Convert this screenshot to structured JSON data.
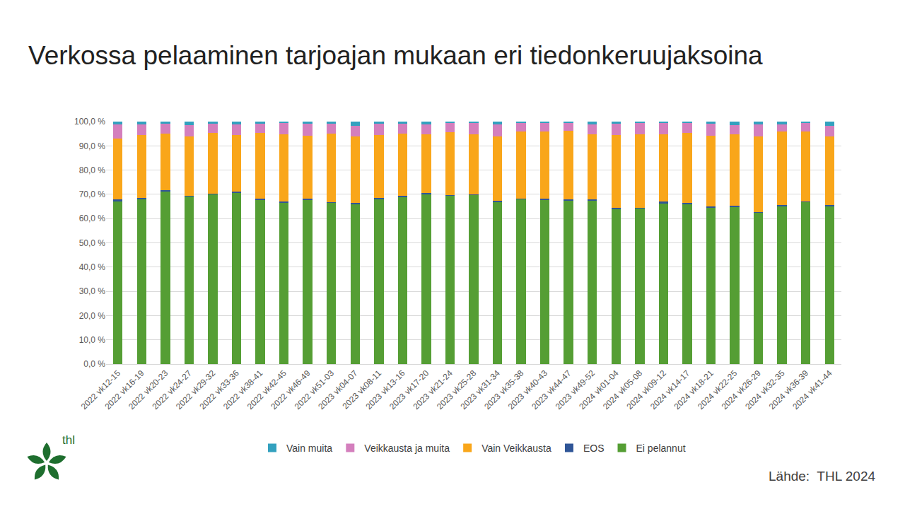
{
  "chart_data": {
    "type": "bar",
    "title": "Verkossa pelaaminen tarjoajan mukaan eri tiedonkeruujaksoina",
    "source": "Lähde:  THL 2024",
    "logo_text": "thl",
    "stacked": true,
    "grid": true,
    "legend": "bottom",
    "categories": [
      "2022 vk12-15",
      "2022 vk16-19",
      "2022 vk20-23",
      "2022 vk24-27",
      "2022 vk29-32",
      "2022 vk33-36",
      "2022 vk38-41",
      "2022 vk42-45",
      "2022 vk46-49",
      "2022 vk51-03",
      "2023 vk04-07",
      "2023 vk08-11",
      "2023 vk13-16",
      "2023 vk17-20",
      "2023 vk21-24",
      "2023 vk25-28",
      "2023 vk31-34",
      "2023 vk35-38",
      "2023 vk40-43",
      "2023 vk44-47",
      "2023 vk49-52",
      "2024 vk01-04",
      "2024 vk05-08",
      "2024 vk09-12",
      "2024 vk14-17",
      "2024 vk18-21",
      "2024 vk22-25",
      "2024 vk26-29",
      "2024 vk32-35",
      "2024 vk36-39",
      "2024 vk41-44"
    ],
    "series": [
      {
        "name": "Ei pelannut",
        "color": "#559e34",
        "values": [
          67,
          68,
          71.3,
          69.2,
          70,
          70.5,
          67.8,
          66.5,
          67.8,
          66.6,
          66,
          68.2,
          69,
          70.2,
          69.5,
          69.8,
          67,
          68,
          67.8,
          67.6,
          67.6,
          64,
          64.3,
          66.3,
          66,
          64.7,
          64.9,
          62.5,
          65.2,
          66.8,
          65.2
        ]
      },
      {
        "name": "EOS",
        "color": "#2f5597",
        "values": [
          0.8,
          0.6,
          0.3,
          0.3,
          0.3,
          0.6,
          0.3,
          0.7,
          0.3,
          0.2,
          0.5,
          0.3,
          0.5,
          0.4,
          0.2,
          0.2,
          0.4,
          0.3,
          0.4,
          0.4,
          0.4,
          0.3,
          0.2,
          0.7,
          0.6,
          0.2,
          0.4,
          0.3,
          0.4,
          0.4,
          0.4
        ]
      },
      {
        "name": "Vain Veikkausta",
        "color": "#f9a61a",
        "values": [
          25.2,
          25.9,
          23.4,
          24.5,
          25,
          23.4,
          27.2,
          27.6,
          26.2,
          28.2,
          27.5,
          26,
          25.5,
          24.2,
          26,
          24.8,
          26.6,
          27.7,
          27.6,
          28.2,
          26.8,
          30.2,
          30.3,
          27.8,
          28.6,
          29.4,
          29.5,
          31.2,
          30.2,
          28.8,
          28.4
        ]
      },
      {
        "name": "Veikkausta ja muita",
        "color": "#d47fbd",
        "values": [
          5.7,
          4.3,
          4,
          4.5,
          3.9,
          4.2,
          3.7,
          4.5,
          4.7,
          4,
          4.3,
          4.7,
          4.2,
          3.9,
          3.7,
          4.6,
          4.7,
          3.4,
          3.7,
          3.2,
          4,
          4.5,
          4.5,
          4.8,
          4.3,
          4.9,
          3.6,
          4.8,
          3,
          3.3,
          4.3
        ]
      },
      {
        "name": "Vain muita",
        "color": "#33a1bf",
        "values": [
          1.3,
          1.2,
          1,
          1.5,
          0.8,
          1.3,
          1,
          0.7,
          1,
          1,
          1.7,
          0.8,
          0.8,
          1.3,
          0.6,
          0.6,
          1.3,
          0.6,
          0.5,
          0.6,
          1.2,
          1,
          0.7,
          0.4,
          0.5,
          0.8,
          1.6,
          1.2,
          1.2,
          0.7,
          1.7
        ]
      }
    ],
    "ylim": [
      0,
      100
    ],
    "yticks": [
      {
        "value": 0,
        "label": "0,0 %"
      },
      {
        "value": 10,
        "label": "10,0 %"
      },
      {
        "value": 20,
        "label": "20,0 %"
      },
      {
        "value": 30,
        "label": "30,0 %"
      },
      {
        "value": 40,
        "label": "40,0 %"
      },
      {
        "value": 50,
        "label": "50,0 %"
      },
      {
        "value": 60,
        "label": "60,0 %"
      },
      {
        "value": 70,
        "label": "70,0 %"
      },
      {
        "value": 80,
        "label": "80,0 %"
      },
      {
        "value": 90,
        "label": "90,0 %"
      },
      {
        "value": 100,
        "label": "100,0 %"
      }
    ]
  }
}
